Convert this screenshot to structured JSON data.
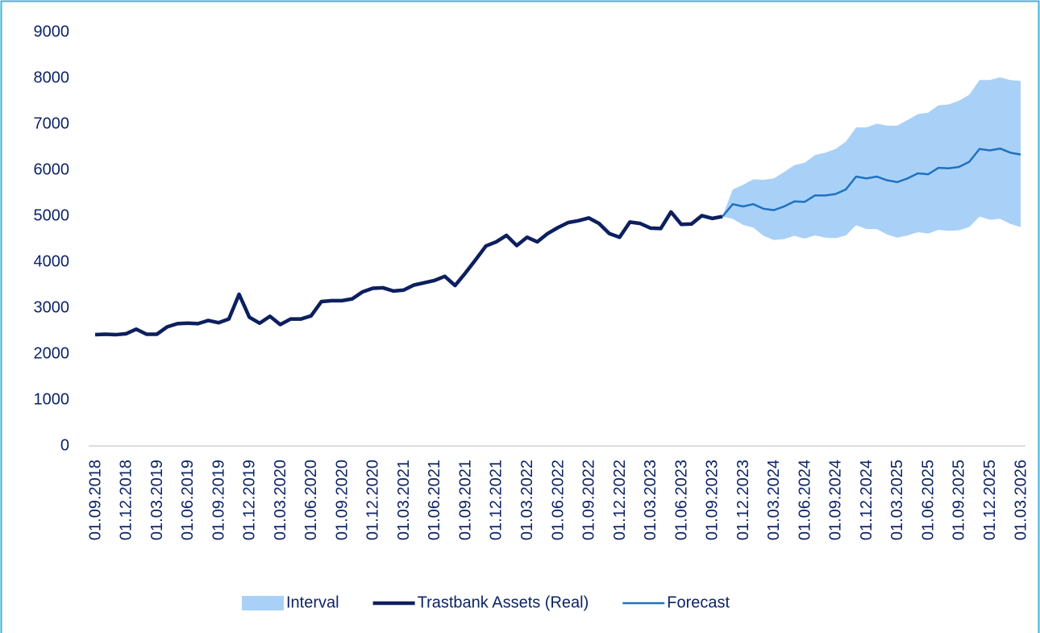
{
  "chart_data": {
    "type": "line",
    "categories": [
      "01.09.2018",
      null,
      null,
      "01.12.2018",
      null,
      null,
      "01.03.2019",
      null,
      null,
      "01.06.2019",
      null,
      null,
      "01.09.2019",
      null,
      null,
      "01.12.2019",
      null,
      null,
      "01.03.2020",
      null,
      null,
      "01.06.2020",
      null,
      null,
      "01.09.2020",
      null,
      null,
      "01.12.2020",
      null,
      null,
      "01.03.2021",
      null,
      null,
      "01.06.2021",
      null,
      null,
      "01.09.2021",
      null,
      null,
      "01.12.2021",
      null,
      null,
      "01.03.2022",
      null,
      null,
      "01.06.2022",
      null,
      null,
      "01.09.2022",
      null,
      null,
      "01.12.2022",
      null,
      null,
      "01.03.2023",
      null,
      null,
      "01.06.2023",
      null,
      null,
      "01.09.2023",
      null,
      null,
      "01.12.2023",
      null,
      null,
      "01.03.2024",
      null,
      null,
      "01.06.2024",
      null,
      null,
      "01.09.2024",
      null,
      null,
      "01.12.2024",
      null,
      null,
      "01.03.2025",
      null,
      null,
      "01.06.2025",
      null,
      null,
      "01.09.2025",
      null,
      null,
      "01.12.2025",
      null,
      null,
      "01.03.2026"
    ],
    "series": [
      {
        "name": "Interval",
        "kind": "band",
        "color": "#a9d1f7",
        "upper": [
          null,
          null,
          null,
          null,
          null,
          null,
          null,
          null,
          null,
          null,
          null,
          null,
          null,
          null,
          null,
          null,
          null,
          null,
          null,
          null,
          null,
          null,
          null,
          null,
          null,
          null,
          null,
          null,
          null,
          null,
          null,
          null,
          null,
          null,
          null,
          null,
          null,
          null,
          null,
          null,
          null,
          null,
          null,
          null,
          null,
          null,
          null,
          null,
          null,
          null,
          null,
          null,
          null,
          null,
          null,
          null,
          null,
          null,
          null,
          null,
          null,
          4990,
          5580,
          5680,
          5800,
          5790,
          5820,
          5960,
          6110,
          6160,
          6330,
          6380,
          6460,
          6620,
          6930,
          6930,
          7010,
          6970,
          6970,
          7090,
          7220,
          7250,
          7410,
          7430,
          7510,
          7640,
          7960,
          7960,
          8020,
          7960,
          7940
        ],
        "lower": [
          null,
          null,
          null,
          null,
          null,
          null,
          null,
          null,
          null,
          null,
          null,
          null,
          null,
          null,
          null,
          null,
          null,
          null,
          null,
          null,
          null,
          null,
          null,
          null,
          null,
          null,
          null,
          null,
          null,
          null,
          null,
          null,
          null,
          null,
          null,
          null,
          null,
          null,
          null,
          null,
          null,
          null,
          null,
          null,
          null,
          null,
          null,
          null,
          null,
          null,
          null,
          null,
          null,
          null,
          null,
          null,
          null,
          null,
          null,
          null,
          null,
          4990,
          4940,
          4810,
          4750,
          4570,
          4480,
          4500,
          4570,
          4510,
          4580,
          4530,
          4520,
          4580,
          4800,
          4720,
          4720,
          4600,
          4530,
          4580,
          4650,
          4620,
          4700,
          4680,
          4690,
          4760,
          4990,
          4920,
          4940,
          4830,
          4760
        ]
      },
      {
        "name": "Trastbank Assets (Real)",
        "color": "#0c1f5e",
        "width": 4.5,
        "values": [
          2420,
          2430,
          2420,
          2440,
          2540,
          2430,
          2430,
          2590,
          2660,
          2670,
          2660,
          2730,
          2680,
          2760,
          3300,
          2800,
          2670,
          2820,
          2640,
          2760,
          2760,
          2830,
          3140,
          3160,
          3160,
          3200,
          3350,
          3430,
          3440,
          3370,
          3390,
          3500,
          3550,
          3600,
          3690,
          3490,
          3760,
          4050,
          4350,
          4440,
          4580,
          4360,
          4540,
          4440,
          4620,
          4750,
          4860,
          4900,
          4960,
          4840,
          4620,
          4540,
          4870,
          4840,
          4740,
          4730,
          5090,
          4820,
          4830,
          5010,
          4950,
          4990,
          null,
          null,
          null,
          null,
          null,
          null,
          null,
          null,
          null,
          null,
          null,
          null,
          null,
          null,
          null,
          null,
          null,
          null,
          null,
          null,
          null,
          null,
          null,
          null,
          null,
          null,
          null,
          null,
          null
        ]
      },
      {
        "name": "Forecast",
        "color": "#1f72c0",
        "width": 2.5,
        "values": [
          null,
          null,
          null,
          null,
          null,
          null,
          null,
          null,
          null,
          null,
          null,
          null,
          null,
          null,
          null,
          null,
          null,
          null,
          null,
          null,
          null,
          null,
          null,
          null,
          null,
          null,
          null,
          null,
          null,
          null,
          null,
          null,
          null,
          null,
          null,
          null,
          null,
          null,
          null,
          null,
          null,
          null,
          null,
          null,
          null,
          null,
          null,
          null,
          null,
          null,
          null,
          null,
          null,
          null,
          null,
          null,
          null,
          null,
          null,
          null,
          null,
          4990,
          5260,
          5210,
          5260,
          5160,
          5130,
          5210,
          5320,
          5310,
          5450,
          5450,
          5480,
          5580,
          5860,
          5820,
          5860,
          5780,
          5740,
          5820,
          5930,
          5910,
          6050,
          6040,
          6070,
          6180,
          6460,
          6430,
          6470,
          6380,
          6340
        ]
      }
    ],
    "ylim": [
      0,
      9000
    ],
    "yticks": [
      0,
      1000,
      2000,
      3000,
      4000,
      5000,
      6000,
      7000,
      8000,
      9000
    ],
    "grid": false,
    "legend": "bottom"
  }
}
